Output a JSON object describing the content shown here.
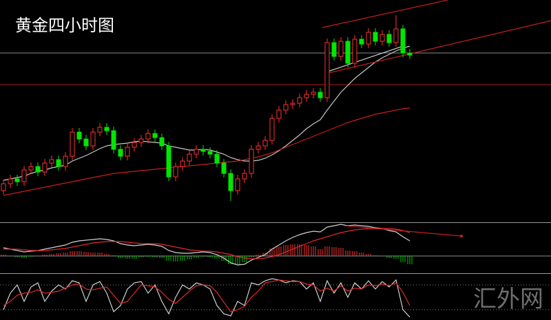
{
  "chart_data": [
    {
      "type": "candlestick",
      "title": "黄金四小时图",
      "xlim": [
        -0.5,
        79.5
      ],
      "ylim": [
        0,
        322
      ],
      "up_color": "#ff3232",
      "down_color": "#00e600",
      "open": [
        45,
        55,
        62,
        58,
        75,
        80,
        72,
        85,
        90,
        80,
        95,
        130,
        120,
        110,
        130,
        137,
        132,
        105,
        95,
        108,
        115,
        120,
        128,
        122,
        110,
        65,
        80,
        88,
        98,
        105,
        102,
        98,
        85,
        70,
        45,
        62,
        70,
        105,
        110,
        118,
        150,
        162,
        170,
        172,
        180,
        185,
        188,
        180,
        260,
        240,
        262,
        230,
        265,
        258,
        275,
        262,
        272,
        260,
        280,
        245
      ],
      "high": [
        61,
        68,
        68,
        81,
        86,
        86,
        91,
        96,
        96,
        101,
        136,
        136,
        126,
        136,
        143,
        143,
        138,
        111,
        114,
        121,
        126,
        134,
        134,
        128,
        116,
        86,
        94,
        104,
        111,
        111,
        108,
        104,
        91,
        76,
        68,
        76,
        111,
        116,
        124,
        156,
        168,
        176,
        178,
        186,
        191,
        194,
        194,
        266,
        266,
        268,
        268,
        271,
        271,
        281,
        281,
        278,
        278,
        300,
        286,
        251
      ],
      "low": [
        39,
        49,
        52,
        52,
        69,
        66,
        66,
        79,
        74,
        74,
        89,
        114,
        104,
        104,
        124,
        126,
        99,
        89,
        89,
        102,
        109,
        114,
        116,
        104,
        59,
        59,
        74,
        82,
        92,
        96,
        92,
        79,
        64,
        30,
        39,
        56,
        64,
        99,
        104,
        112,
        144,
        156,
        164,
        166,
        174,
        179,
        174,
        174,
        234,
        234,
        224,
        224,
        252,
        252,
        256,
        256,
        254,
        254,
        239,
        236
      ],
      "close": [
        55,
        62,
        58,
        75,
        80,
        72,
        85,
        90,
        80,
        95,
        130,
        120,
        110,
        130,
        137,
        132,
        105,
        95,
        108,
        115,
        120,
        128,
        122,
        110,
        65,
        80,
        88,
        98,
        105,
        102,
        98,
        85,
        70,
        45,
        62,
        70,
        105,
        110,
        118,
        150,
        162,
        170,
        172,
        180,
        185,
        188,
        180,
        260,
        240,
        262,
        230,
        265,
        258,
        275,
        262,
        272,
        260,
        280,
        245,
        242
      ],
      "lines": [
        {
          "color": "#c8c8c8",
          "values": [
            60,
            62,
            64,
            66,
            70,
            73,
            75,
            78,
            80,
            82,
            88,
            92,
            96,
            101,
            106,
            110,
            112,
            113,
            114,
            116,
            117,
            116,
            115,
            114,
            110,
            108,
            106,
            104,
            104,
            105,
            104,
            101,
            98,
            93,
            90,
            88,
            88,
            89,
            92,
            97,
            103,
            110,
            118,
            126,
            135,
            142,
            148,
            162,
            175,
            188,
            198,
            208,
            216,
            224,
            232,
            238,
            243,
            248,
            252,
            255
          ]
        },
        {
          "color": "#c81e1e",
          "values": [
            38,
            40,
            42,
            44,
            46,
            48,
            50,
            52,
            54,
            56,
            58,
            60,
            62,
            64,
            66,
            68,
            70,
            71,
            72,
            73,
            74,
            75,
            76,
            77,
            78,
            79,
            80,
            81,
            82,
            83,
            84,
            85,
            86,
            87,
            88,
            90,
            92,
            94,
            97,
            100,
            104,
            108,
            112,
            116,
            120,
            124,
            128,
            132,
            136,
            140,
            144,
            147,
            150,
            153,
            156,
            158,
            160,
            162,
            164,
            165
          ]
        }
      ],
      "hlines": [
        {
          "value": 245,
          "color": "#8c8c8c"
        },
        {
          "value": 199,
          "color": "#b41e1e"
        }
      ],
      "trendlines": [
        {
          "color": "#c81e1e",
          "x": [
            46.3,
            64.5
          ],
          "values": [
            282,
            322
          ]
        },
        {
          "color": "#c81e1e",
          "x": [
            46.8,
            79.5
          ],
          "values": [
            215,
            292
          ]
        },
        {
          "color": "#c8c8c8",
          "x": [
            46.8,
            58
          ],
          "values": [
            217,
            255
          ]
        }
      ]
    },
    {
      "type": "macd",
      "xlim": [
        -0.5,
        79.5
      ],
      "ylim": [
        -23,
        47
      ],
      "zero_color": "#8c8c8c",
      "pos_color": "#ff3232",
      "neg_color": "#00c800",
      "hist": [
        2,
        0,
        -2,
        -3,
        -1,
        0,
        2,
        3,
        4,
        5,
        7,
        7,
        6,
        5,
        5,
        3,
        1,
        -3,
        -4,
        -4,
        -2,
        -1,
        -2,
        -3,
        -7,
        -8,
        -7,
        -5,
        -3,
        -1,
        -2,
        -4,
        -7,
        -12,
        -12,
        -9,
        -2,
        2,
        5,
        11,
        14,
        16,
        17,
        17,
        16,
        14,
        10,
        14,
        13,
        12,
        8,
        7,
        5,
        3,
        1,
        0,
        -3,
        -4,
        -9,
        -12
      ],
      "lines": [
        {
          "color": "#d2d2d2",
          "values": [
            12,
            10,
            8,
            6,
            7,
            8,
            10,
            12,
            14,
            16,
            20,
            22,
            23,
            24,
            25,
            24,
            22,
            18,
            16,
            15,
            16,
            17,
            16,
            14,
            8,
            5,
            4,
            4,
            5,
            6,
            5,
            2,
            -3,
            -10,
            -13,
            -12,
            -6,
            -2,
            2,
            10,
            16,
            22,
            27,
            31,
            34,
            36,
            35,
            42,
            44,
            46,
            44,
            45,
            44,
            43,
            41,
            40,
            37,
            35,
            28,
            22
          ]
        },
        {
          "color": "#e62828",
          "values": [
            10,
            10,
            10,
            9,
            8,
            8,
            8,
            9,
            10,
            11,
            13,
            15,
            17,
            19,
            20,
            21,
            21,
            21,
            20,
            19,
            18,
            18,
            18,
            17,
            15,
            13,
            11,
            9,
            8,
            7,
            7,
            6,
            4,
            2,
            -1,
            -3,
            -4,
            -4,
            -3,
            -1,
            2,
            6,
            10,
            14,
            18,
            22,
            25,
            28,
            31,
            34,
            36,
            38,
            39,
            40,
            40,
            40,
            40,
            39,
            37,
            34
          ]
        }
      ],
      "trendlines": [
        {
          "color": "#c81e1e",
          "x": [
            49.5,
            66.5
          ],
          "values": [
            44,
            29
          ]
        }
      ]
    },
    {
      "type": "stochastic",
      "xlim": [
        -0.5,
        79.5
      ],
      "ylim": [
        0,
        100
      ],
      "levels": [
        20,
        80
      ],
      "level_color": "#8c8c8c",
      "lines": [
        {
          "color": "#d2d2d2",
          "values": [
            20,
            60,
            80,
            40,
            75,
            85,
            40,
            65,
            80,
            70,
            90,
            85,
            40,
            80,
            88,
            60,
            15,
            30,
            70,
            85,
            88,
            60,
            80,
            40,
            10,
            50,
            80,
            70,
            85,
            80,
            70,
            30,
            10,
            5,
            40,
            30,
            85,
            80,
            90,
            95,
            92,
            85,
            90,
            88,
            70,
            85,
            40,
            90,
            60,
            85,
            50,
            85,
            70,
            90,
            70,
            88,
            75,
            92,
            20,
            2
          ]
        },
        {
          "color": "#e62828",
          "values": [
            30,
            40,
            55,
            60,
            62,
            68,
            60,
            62,
            65,
            72,
            80,
            82,
            70,
            68,
            72,
            75,
            55,
            35,
            40,
            60,
            80,
            78,
            75,
            62,
            45,
            35,
            50,
            65,
            78,
            80,
            78,
            62,
            38,
            15,
            20,
            28,
            50,
            65,
            85,
            88,
            92,
            90,
            88,
            88,
            82,
            80,
            65,
            72,
            65,
            78,
            65,
            72,
            70,
            80,
            78,
            82,
            78,
            85,
            62,
            30
          ]
        }
      ]
    }
  ],
  "watermark": "汇外网"
}
